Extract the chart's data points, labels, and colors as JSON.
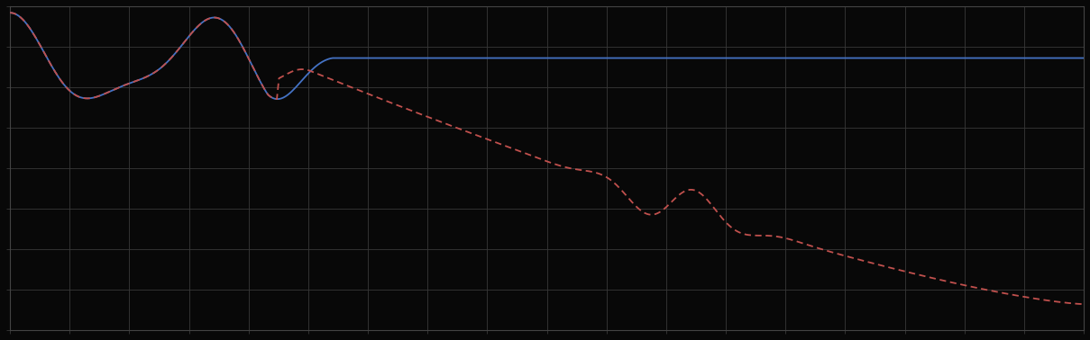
{
  "background_color": "#080808",
  "axes_bg_color": "#080808",
  "grid_color": "#383838",
  "line1_color": "#4472c4",
  "line2_color": "#c0504d",
  "line_width": 1.3,
  "figsize": [
    12.09,
    3.78
  ],
  "dpi": 100,
  "n_points": 500,
  "xlim": [
    0,
    499
  ],
  "ylim": [
    0,
    1
  ],
  "grid_nx": 18,
  "grid_ny": 8
}
